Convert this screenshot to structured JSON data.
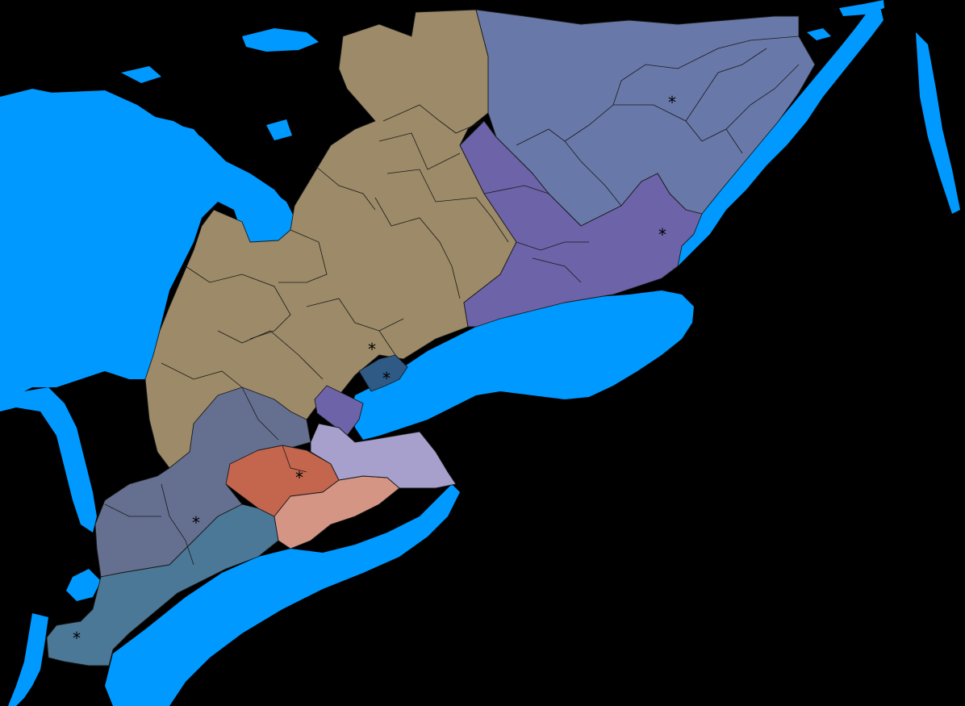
{
  "map": {
    "colors": {
      "background": "#000000",
      "water": "#0099ff",
      "central_tan": "#9c8a68",
      "east_slate": "#6878a8",
      "east_purple": "#6c63a8",
      "toronto_navy": "#2f5a86",
      "southwest_slate": "#657090",
      "southwest_blue": "#4c7898",
      "hamilton_red": "#c4664e",
      "niagara_salmon": "#d49585",
      "lavender": "#a8a0cc"
    },
    "regions": [
      {
        "id": "central-ontario",
        "color_key": "central_tan"
      },
      {
        "id": "eastern-ontario-north",
        "color_key": "east_slate"
      },
      {
        "id": "eastern-ontario-south",
        "color_key": "east_purple"
      },
      {
        "id": "toronto",
        "color_key": "toronto_navy"
      },
      {
        "id": "peel",
        "color_key": "east_purple"
      },
      {
        "id": "southwest-north",
        "color_key": "southwest_slate"
      },
      {
        "id": "southwest-south",
        "color_key": "southwest_blue"
      },
      {
        "id": "hamilton-wellington",
        "color_key": "hamilton_red"
      },
      {
        "id": "niagara-haldimand",
        "color_key": "niagara_salmon"
      },
      {
        "id": "halton-niagara-east",
        "color_key": "lavender"
      }
    ],
    "markers": [
      "*",
      "*",
      "*",
      "*",
      "*",
      "*",
      "*"
    ]
  }
}
